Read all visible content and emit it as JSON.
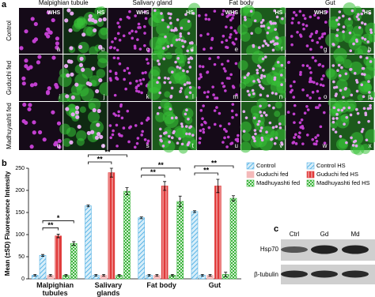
{
  "panel_a": {
    "label": "a",
    "column_headers": [
      "Malpighian tubule",
      "Salivary gland",
      "Fat body",
      "Gut"
    ],
    "condition_labels": [
      "WHS",
      "HS"
    ],
    "row_labels": [
      "Control",
      "Guduchi fed",
      "Madhuyashti fed"
    ],
    "panel_letters": [
      "a",
      "b",
      "c",
      "d",
      "e",
      "f",
      "g",
      "h",
      "i",
      "j",
      "k",
      "l",
      "m",
      "n",
      "o",
      "p",
      "q",
      "r",
      "s",
      "t",
      "u",
      "v",
      "w",
      "x"
    ]
  },
  "chart_data": {
    "type": "bar",
    "panel_label": "b",
    "y_label": "Mean (±SD) Fluorescence Intensity",
    "categories": [
      "Malpighian tubules",
      "Salivary glands",
      "Fat body",
      "Gut"
    ],
    "series": [
      {
        "name": "Control",
        "color": "#5ab4e6",
        "pattern": "hatch",
        "values": [
          8,
          165,
          138,
          152
        ],
        "errors": [
          2,
          2,
          2,
          2
        ]
      },
      {
        "name": "Control HS",
        "color": "#5ab4e6",
        "pattern": "hatch",
        "values": [
          53,
          8,
          8,
          8
        ],
        "errors": [
          2,
          2,
          2,
          2
        ]
      },
      {
        "name": "Guduchi fed",
        "color": "#f4b9b9",
        "pattern": "solid",
        "values": [
          8,
          8,
          8,
          8
        ],
        "errors": [
          2,
          2,
          2,
          2
        ]
      },
      {
        "name": "Guduchi fed HS",
        "color": "#e03a3a",
        "pattern": "stripe",
        "values": [
          97,
          240,
          210,
          210
        ],
        "errors": [
          4,
          10,
          10,
          15
        ]
      },
      {
        "name": "Madhuyashti fed",
        "color": "#3cb43c",
        "pattern": "check",
        "values": [
          8,
          8,
          8,
          10
        ],
        "errors": [
          2,
          2,
          2,
          5
        ]
      },
      {
        "name": "Madhuyashti fed HS",
        "color": "#3cb43c",
        "pattern": "check",
        "values": [
          80,
          198,
          175,
          182
        ],
        "errors": [
          4,
          8,
          12,
          6
        ]
      }
    ],
    "ylim": [
      0,
      250
    ],
    "yticks": [
      0,
      50,
      100,
      150,
      200,
      250
    ],
    "annotations": [
      {
        "text": "**",
        "category": 0,
        "series": [
          1,
          3
        ]
      },
      {
        "text": "*",
        "category": 0,
        "series": [
          1,
          5
        ]
      },
      {
        "text": "**",
        "category": 1,
        "series": [
          0,
          3
        ]
      },
      {
        "text": "**",
        "category": 1,
        "series": [
          0,
          5
        ]
      },
      {
        "text": "**",
        "category": 2,
        "series": [
          0,
          3
        ]
      },
      {
        "text": "**",
        "category": 2,
        "series": [
          0,
          5
        ]
      },
      {
        "text": "**",
        "category": 3,
        "series": [
          0,
          3
        ]
      },
      {
        "text": "**",
        "category": 3,
        "series": [
          0,
          5
        ]
      }
    ]
  },
  "panel_c": {
    "label": "c",
    "lanes": [
      "Ctrl",
      "Gd",
      "Md"
    ],
    "proteins": [
      "Hsp70",
      "β-tubulin"
    ]
  }
}
